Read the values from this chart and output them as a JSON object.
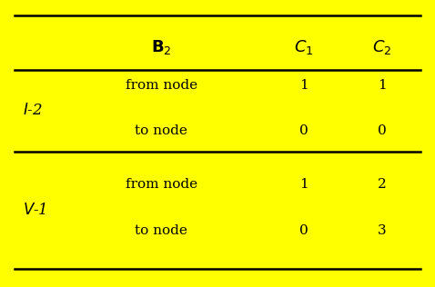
{
  "background_color": "#FFFF00",
  "fig_width": 4.78,
  "fig_height": 3.16,
  "dpi": 100,
  "header_col1": "$\\mathbf{B}_2$",
  "header_col2": "$C_1$",
  "header_col3": "$C_2$",
  "row1_label": "$I$-2",
  "row1_sub1": "from node",
  "row1_sub2": "to node",
  "row1_c1_from": "1",
  "row1_c1_to": "0",
  "row1_c2_from": "1",
  "row1_c2_to": "0",
  "row2_label": "$V$-1",
  "row2_sub1": "from node",
  "row2_sub2": "to node",
  "row2_c1_from": "1",
  "row2_c1_to": "0",
  "row2_c2_from": "2",
  "row2_c2_to": "3",
  "line_color": "#000000",
  "text_color": "#000000",
  "font_size_header": 13,
  "font_size_body": 11,
  "font_size_label": 12
}
